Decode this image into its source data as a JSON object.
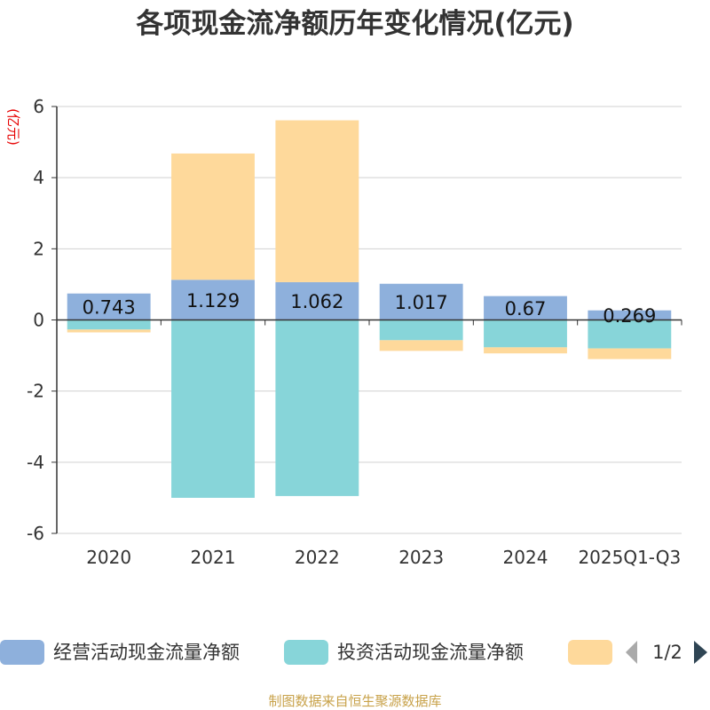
{
  "chart_data": {
    "type": "bar",
    "stacked": true,
    "title": "各项现金流净额历年变化情况(亿元)",
    "ylabel": "(亿元)",
    "ylim": [
      -6,
      6
    ],
    "yticks": [
      6,
      4,
      2,
      0,
      -2,
      -4,
      -6
    ],
    "categories": [
      "2020",
      "2021",
      "2022",
      "2023",
      "2024",
      "2025Q1-Q3"
    ],
    "grid": true,
    "legend_position": "bottom",
    "series": [
      {
        "name": "经营活动现金流量净额",
        "color": "#8eb0dc",
        "values": [
          0.743,
          1.129,
          1.062,
          1.017,
          0.67,
          0.269
        ],
        "labels": [
          "0.743",
          "1.129",
          "1.062",
          "1.017",
          "0.67",
          "0.269"
        ]
      },
      {
        "name": "投资活动现金流量净额",
        "color": "#87d5d9",
        "values": [
          -0.27,
          -5.0,
          -4.95,
          -0.57,
          -0.77,
          -0.8
        ]
      },
      {
        "name": "",
        "color": "#fed99b",
        "values": [
          -0.08,
          3.55,
          4.55,
          -0.3,
          -0.17,
          -0.3
        ]
      }
    ],
    "pager": "1/2",
    "source": "制图数据来自恒生聚源数据库"
  }
}
